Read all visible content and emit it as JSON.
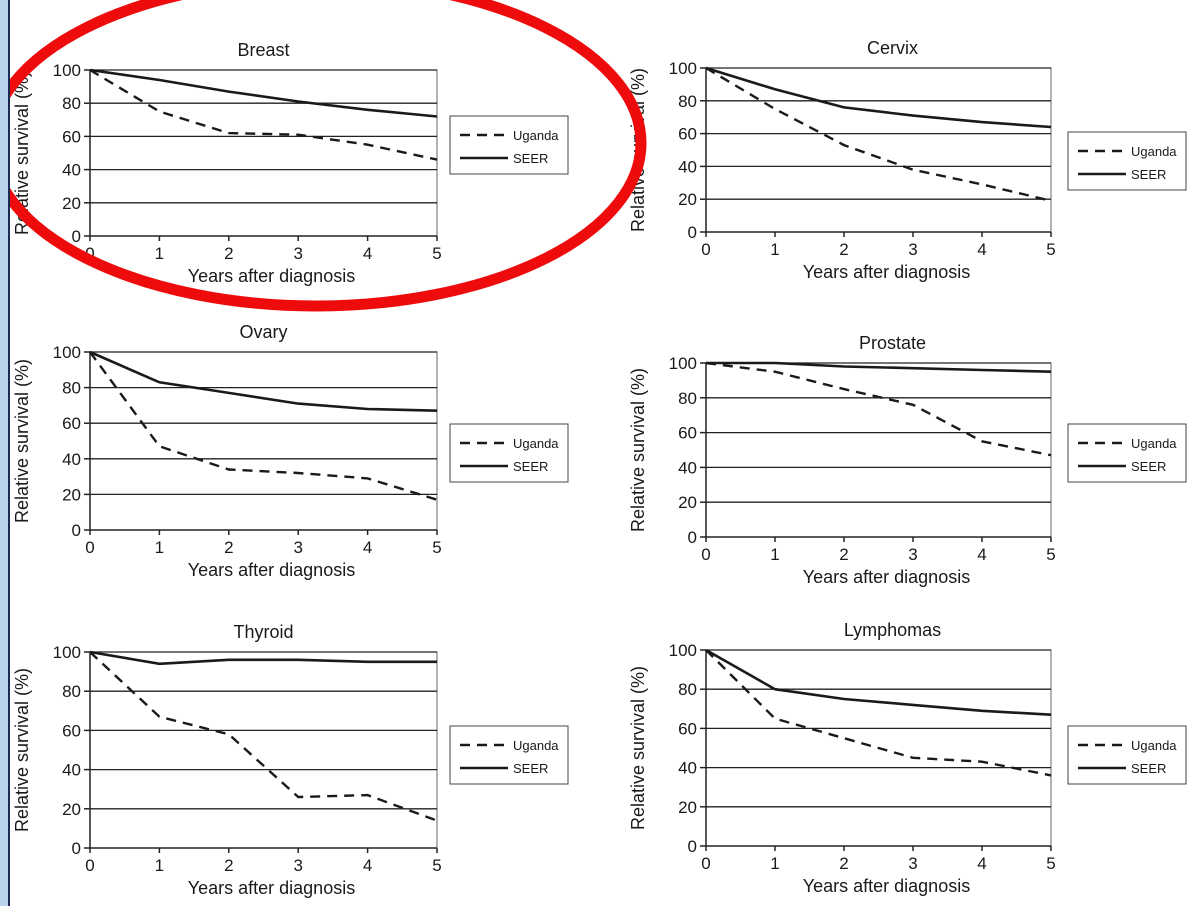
{
  "colors": {
    "background_frame": "#b9d3ee",
    "border": "#1b2a55",
    "highlight": "#ee0b0b",
    "line": "#1a1a1a"
  },
  "highlighted_panel": "Breast",
  "chart_data": [
    {
      "type": "line",
      "title": "Breast",
      "xlabel": "Years after diagnosis",
      "ylabel": "Relative survival (%)",
      "x": [
        0,
        1,
        2,
        3,
        4,
        5
      ],
      "xticks": [
        "0",
        "1",
        "2",
        "3",
        "4",
        "5"
      ],
      "yticks": [
        "0",
        "20",
        "40",
        "60",
        "80",
        "100"
      ],
      "ylim": [
        0,
        100
      ],
      "xlim": [
        0,
        5
      ],
      "grid": "horizontal",
      "legend": "right",
      "series": [
        {
          "name": "Uganda",
          "style": "dashed",
          "values": [
            100,
            75,
            62,
            61,
            55,
            46
          ]
        },
        {
          "name": "SEER",
          "style": "solid",
          "values": [
            100,
            94,
            87,
            81,
            76,
            72
          ]
        }
      ]
    },
    {
      "type": "line",
      "title": "Cervix",
      "xlabel": "Years after diagnosis",
      "ylabel": "Relative survival (%)",
      "x": [
        0,
        1,
        2,
        3,
        4,
        5
      ],
      "xticks": [
        "0",
        "1",
        "2",
        "3",
        "4",
        "5"
      ],
      "yticks": [
        "0",
        "20",
        "40",
        "60",
        "80",
        "100"
      ],
      "ylim": [
        0,
        100
      ],
      "xlim": [
        0,
        5
      ],
      "grid": "horizontal",
      "legend": "right",
      "series": [
        {
          "name": "Uganda",
          "style": "dashed",
          "values": [
            100,
            75,
            53,
            38,
            29,
            19
          ]
        },
        {
          "name": "SEER",
          "style": "solid",
          "values": [
            100,
            87,
            76,
            71,
            67,
            64
          ]
        }
      ]
    },
    {
      "type": "line",
      "title": "Ovary",
      "xlabel": "Years after diagnosis",
      "ylabel": "Relative survival (%)",
      "x": [
        0,
        1,
        2,
        3,
        4,
        5
      ],
      "xticks": [
        "0",
        "1",
        "2",
        "3",
        "4",
        "5"
      ],
      "yticks": [
        "0",
        "20",
        "40",
        "60",
        "80",
        "100"
      ],
      "ylim": [
        0,
        100
      ],
      "xlim": [
        0,
        5
      ],
      "grid": "horizontal",
      "legend": "right",
      "series": [
        {
          "name": "Uganda",
          "style": "dashed",
          "values": [
            100,
            47,
            34,
            32,
            29,
            17
          ]
        },
        {
          "name": "SEER",
          "style": "solid",
          "values": [
            100,
            83,
            77,
            71,
            68,
            67
          ]
        }
      ]
    },
    {
      "type": "line",
      "title": "Prostate",
      "xlabel": "Years after diagnosis",
      "ylabel": "Relative survival (%)",
      "x": [
        0,
        1,
        2,
        3,
        4,
        5
      ],
      "xticks": [
        "0",
        "1",
        "2",
        "3",
        "4",
        "5"
      ],
      "yticks": [
        "0",
        "20",
        "40",
        "60",
        "80",
        "100"
      ],
      "ylim": [
        0,
        100
      ],
      "xlim": [
        0,
        5
      ],
      "grid": "horizontal",
      "legend": "right",
      "series": [
        {
          "name": "Uganda",
          "style": "dashed",
          "values": [
            100,
            95,
            85,
            76,
            55,
            47
          ]
        },
        {
          "name": "SEER",
          "style": "solid",
          "values": [
            100,
            100,
            98,
            97,
            96,
            95
          ]
        }
      ]
    },
    {
      "type": "line",
      "title": "Thyroid",
      "xlabel": "Years after diagnosis",
      "ylabel": "Relative survival (%)",
      "x": [
        0,
        1,
        2,
        3,
        4,
        5
      ],
      "xticks": [
        "0",
        "1",
        "2",
        "3",
        "4",
        "5"
      ],
      "yticks": [
        "0",
        "20",
        "40",
        "60",
        "80",
        "100"
      ],
      "ylim": [
        0,
        100
      ],
      "xlim": [
        0,
        5
      ],
      "grid": "horizontal",
      "legend": "right",
      "series": [
        {
          "name": "Uganda",
          "style": "dashed",
          "values": [
            100,
            67,
            58,
            26,
            27,
            14
          ]
        },
        {
          "name": "SEER",
          "style": "solid",
          "values": [
            100,
            94,
            96,
            96,
            95,
            95
          ]
        }
      ]
    },
    {
      "type": "line",
      "title": "Lymphomas",
      "xlabel": "Years after diagnosis",
      "ylabel": "Relative survival (%)",
      "x": [
        0,
        1,
        2,
        3,
        4,
        5
      ],
      "xticks": [
        "0",
        "1",
        "2",
        "3",
        "4",
        "5"
      ],
      "yticks": [
        "0",
        "20",
        "40",
        "60",
        "80",
        "100"
      ],
      "ylim": [
        0,
        100
      ],
      "xlim": [
        0,
        5
      ],
      "grid": "horizontal",
      "legend": "right",
      "series": [
        {
          "name": "Uganda",
          "style": "dashed",
          "values": [
            100,
            65,
            55,
            45,
            43,
            36
          ]
        },
        {
          "name": "SEER",
          "style": "solid",
          "values": [
            100,
            80,
            75,
            72,
            69,
            67
          ]
        }
      ]
    }
  ]
}
